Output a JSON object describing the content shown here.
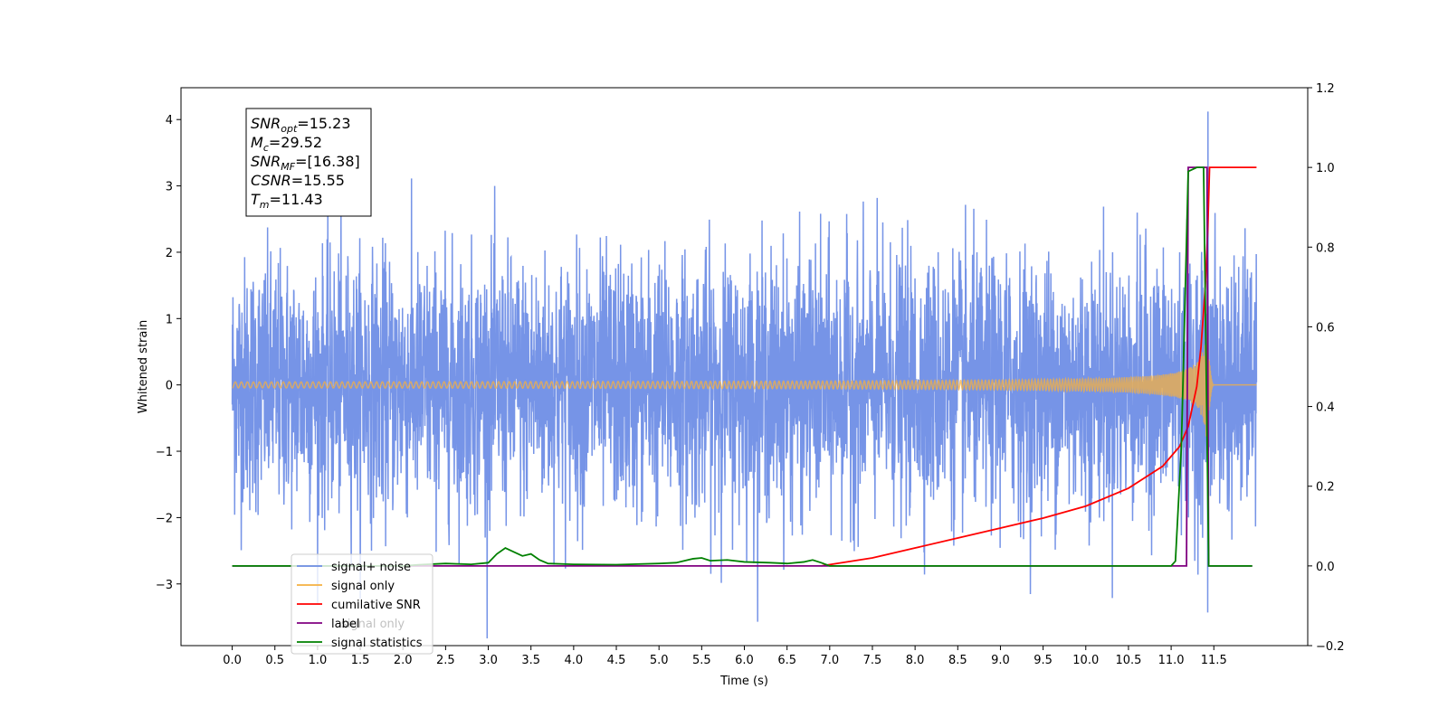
{
  "chart_data": {
    "type": "line",
    "xlabel": "Time (s)",
    "ylabel": "Whitened strain",
    "xlim": [
      -0.6,
      12.6
    ],
    "ylim": [
      -3.93,
      4.48
    ],
    "y2lim": [
      -0.2,
      1.2
    ],
    "x_ticks": [
      0.0,
      0.5,
      1.0,
      1.5,
      2.0,
      2.5,
      3.0,
      3.5,
      4.0,
      4.5,
      5.0,
      5.5,
      6.0,
      6.5,
      7.0,
      7.5,
      8.0,
      8.5,
      9.0,
      9.5,
      10.0,
      10.5,
      11.0,
      11.5
    ],
    "x_tick_labels": [
      "0.0",
      "0.5",
      "1.0",
      "1.5",
      "2.0",
      "2.5",
      "3.0",
      "3.5",
      "4.0",
      "4.5",
      "5.0",
      "5.5",
      "6.0",
      "6.5",
      "7.0",
      "7.5",
      "8.0",
      "8.5",
      "9.0",
      "9.5",
      "10.0",
      "10.5",
      "11.0",
      "11.5"
    ],
    "y_ticks": [
      -3,
      -2,
      -1,
      0,
      1,
      2,
      3,
      4
    ],
    "y_tick_labels": [
      "−3",
      "−2",
      "−1",
      "0",
      "1",
      "2",
      "3",
      "4"
    ],
    "y2_ticks": [
      -0.2,
      0.0,
      0.2,
      0.4,
      0.6,
      0.8,
      1.0,
      1.2
    ],
    "y2_tick_labels": [
      "−0.2",
      "0.0",
      "0.2",
      "0.4",
      "0.6",
      "0.8",
      "1.0",
      "1.2"
    ],
    "legend_position": "lower-left",
    "grid": false,
    "annotation_box": [
      {
        "sym": "SNR",
        "sub": "opt",
        "value": "=15.23"
      },
      {
        "sym": "M",
        "sub": "c",
        "value": "=29.52"
      },
      {
        "sym": "SNR",
        "sub": "MF",
        "value": "=[16.38]"
      },
      {
        "sym": "CSNR",
        "sub": "",
        "value": "=15.55"
      },
      {
        "sym": "T",
        "sub": "m",
        "value": "=11.43"
      }
    ],
    "series": [
      {
        "name": "signal+ noise",
        "color": "#6f8ee6",
        "axis": "left",
        "description": "dense noise, sigma ~1, peaks to ~4.1 near t=11.43",
        "x_range": [
          0.0,
          12.0
        ],
        "noise_std": 0.95,
        "peak": {
          "x": 11.43,
          "y": 4.12,
          "min": -3.43
        }
      },
      {
        "name": "signal only",
        "color": "#f5b041",
        "axis": "left",
        "description": "chirp, amplitude growing to ~1.3 near t=11.43",
        "x_range": [
          0.0,
          12.0
        ],
        "chirp_peak_time": 11.43,
        "peak_amplitude": 1.3
      },
      {
        "name": "cumilative SNR",
        "color": "#ff0000",
        "axis": "right",
        "x": [
          6.9,
          7.5,
          8.0,
          8.5,
          9.0,
          9.5,
          10.0,
          10.5,
          10.9,
          11.1,
          11.2,
          11.3,
          11.35,
          11.4,
          11.43,
          11.45,
          12.0
        ],
        "y": [
          0.0,
          0.02,
          0.045,
          0.07,
          0.095,
          0.12,
          0.15,
          0.195,
          0.25,
          0.3,
          0.35,
          0.45,
          0.55,
          0.7,
          0.85,
          1.0,
          1.0
        ]
      },
      {
        "name": "label",
        "color": "#800080",
        "axis": "right",
        "x": [
          0.0,
          11.18,
          11.2,
          11.42,
          11.44,
          11.95
        ],
        "y": [
          0.0,
          0.0,
          1.0,
          1.0,
          0.0,
          0.0
        ]
      },
      {
        "name": "signal statistics",
        "color": "#008000",
        "axis": "right",
        "x": [
          0.0,
          2.0,
          2.2,
          2.5,
          2.8,
          3.0,
          3.1,
          3.2,
          3.3,
          3.4,
          3.5,
          3.6,
          3.7,
          4.0,
          4.5,
          5.0,
          5.2,
          5.4,
          5.5,
          5.6,
          5.8,
          6.0,
          6.3,
          6.5,
          6.7,
          6.8,
          6.9,
          7.0,
          11.0,
          11.05,
          11.12,
          11.2,
          11.3,
          11.38,
          11.44,
          11.48,
          11.95
        ],
        "y": [
          0.0,
          0.0,
          0.003,
          0.006,
          0.004,
          0.008,
          0.03,
          0.045,
          0.035,
          0.025,
          0.03,
          0.015,
          0.006,
          0.004,
          0.003,
          0.006,
          0.008,
          0.018,
          0.02,
          0.013,
          0.015,
          0.01,
          0.008,
          0.006,
          0.01,
          0.015,
          0.008,
          0.0,
          0.0,
          0.012,
          0.3,
          0.99,
          1.0,
          1.0,
          0.0,
          0.0,
          0.0
        ]
      }
    ],
    "legend_labels": [
      "signal+ noise",
      "signal only",
      "cumilative SNR",
      "label",
      "signal statistics"
    ],
    "legend_overlapped_hidden_label": "signal only"
  }
}
